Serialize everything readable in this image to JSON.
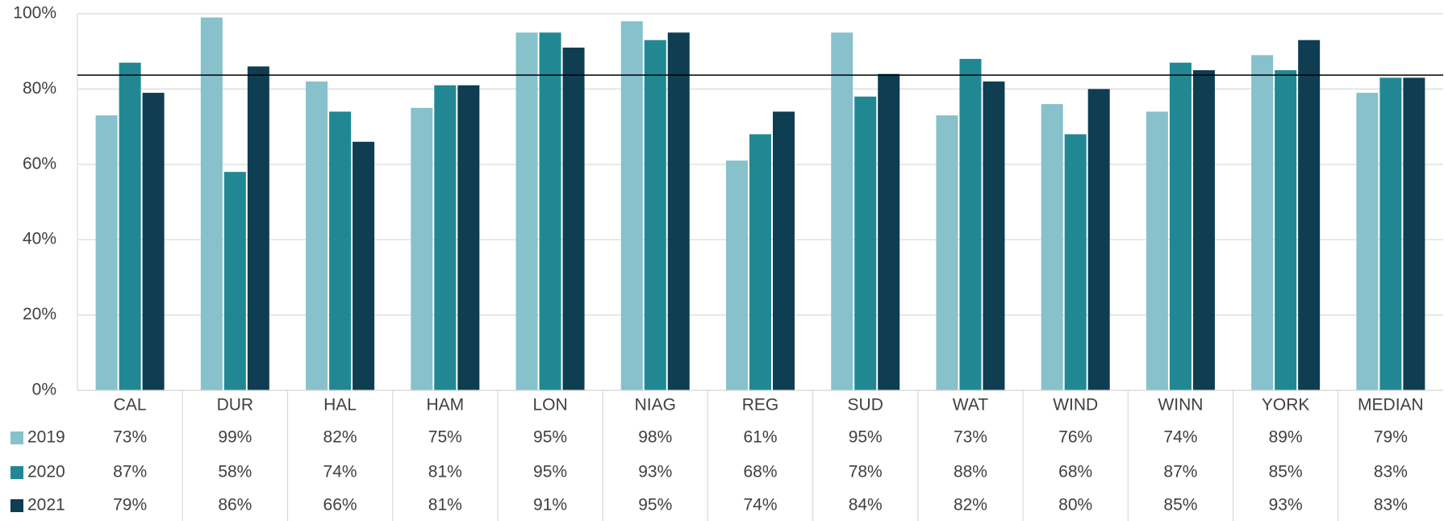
{
  "chart_data": {
    "type": "bar",
    "categories": [
      "CAL",
      "DUR",
      "HAL",
      "HAM",
      "LON",
      "NIAG",
      "REG",
      "SUD",
      "WAT",
      "WIND",
      "WINN",
      "YORK",
      "MEDIAN"
    ],
    "series": [
      {
        "name": "2019",
        "color": "#86c1cc",
        "values": [
          73,
          99,
          82,
          75,
          95,
          98,
          61,
          95,
          73,
          76,
          74,
          89,
          79
        ],
        "value_labels": [
          "73%",
          "99%",
          "82%",
          "75%",
          "95%",
          "98%",
          "61%",
          "95%",
          "73%",
          "76%",
          "74%",
          "89%",
          "79%"
        ]
      },
      {
        "name": "2020",
        "color": "#218893",
        "values": [
          87,
          58,
          74,
          81,
          95,
          93,
          68,
          78,
          88,
          68,
          87,
          85,
          83
        ],
        "value_labels": [
          "87%",
          "58%",
          "74%",
          "81%",
          "95%",
          "93%",
          "68%",
          "78%",
          "88%",
          "68%",
          "87%",
          "85%",
          "83%"
        ]
      },
      {
        "name": "2021",
        "color": "#0f3d52",
        "values": [
          79,
          86,
          66,
          81,
          91,
          95,
          74,
          84,
          82,
          80,
          85,
          93,
          83
        ],
        "value_labels": [
          "79%",
          "86%",
          "66%",
          "81%",
          "91%",
          "95%",
          "74%",
          "84%",
          "82%",
          "80%",
          "85%",
          "93%",
          "83%"
        ]
      }
    ],
    "ylim": [
      0,
      100
    ],
    "yticks": [
      {
        "value": 0,
        "label": "0%"
      },
      {
        "value": 20,
        "label": "20%"
      },
      {
        "value": 40,
        "label": "40%"
      },
      {
        "value": 60,
        "label": "60%"
      },
      {
        "value": 80,
        "label": "80%"
      },
      {
        "value": 100,
        "label": "100%"
      }
    ],
    "grid": true,
    "reference_line": 83.7,
    "reference_line_color": "#000000"
  }
}
